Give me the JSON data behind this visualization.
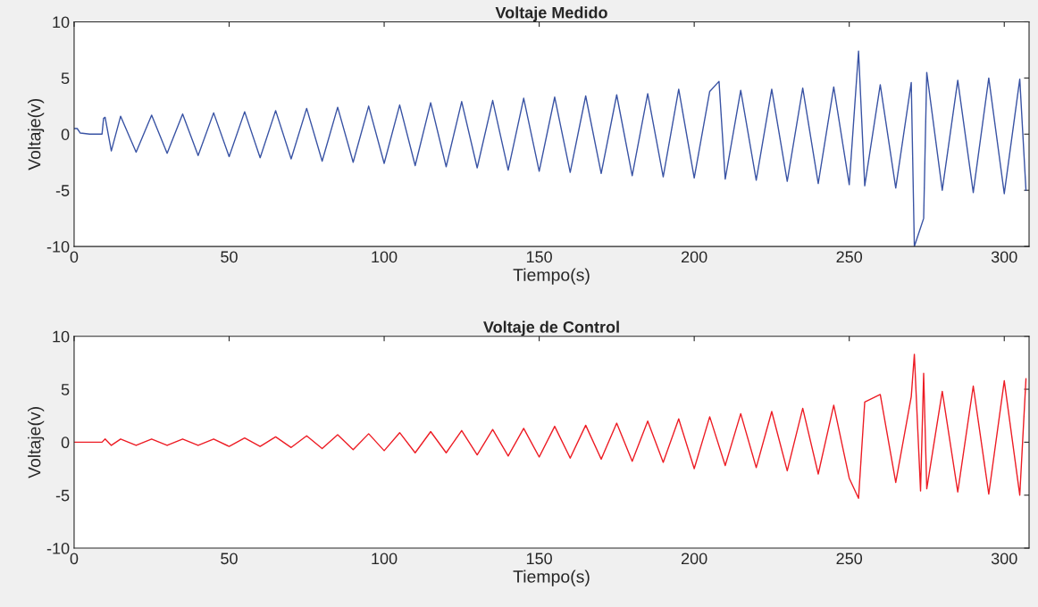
{
  "chart_data": [
    {
      "type": "line",
      "title": "Voltaje Medido",
      "xlabel": "Tiempo(s)",
      "ylabel": "Voltaje(v)",
      "xlim": [
        0,
        308
      ],
      "ylim": [
        -10,
        10
      ],
      "xticks": [
        0,
        50,
        100,
        150,
        200,
        250,
        300
      ],
      "yticks": [
        -10,
        -5,
        0,
        5,
        10
      ],
      "grid": false,
      "series": [
        {
          "color": "#3953a4",
          "x": [
            0,
            1,
            2,
            5,
            9,
            9.5,
            10,
            12,
            15,
            20,
            25,
            30,
            35,
            40,
            45,
            50,
            55,
            60,
            65,
            70,
            75,
            80,
            85,
            90,
            95,
            100,
            105,
            110,
            115,
            120,
            125,
            130,
            135,
            140,
            145,
            150,
            155,
            160,
            165,
            170,
            175,
            180,
            185,
            190,
            195,
            200,
            205,
            208,
            210,
            215,
            220,
            225,
            230,
            235,
            240,
            245,
            250,
            253,
            255,
            260,
            265,
            270,
            271,
            274,
            275,
            280,
            285,
            290,
            295,
            300,
            305,
            307
          ],
          "values": [
            0.5,
            0.5,
            0.1,
            0,
            0,
            1.4,
            1.5,
            -1.5,
            1.6,
            -1.6,
            1.7,
            -1.7,
            1.8,
            -1.9,
            1.9,
            -2.0,
            2.0,
            -2.1,
            2.1,
            -2.2,
            2.3,
            -2.4,
            2.4,
            -2.5,
            2.5,
            -2.6,
            2.6,
            -2.8,
            2.8,
            -2.9,
            2.9,
            -3.0,
            3.0,
            -3.2,
            3.2,
            -3.3,
            3.3,
            -3.4,
            3.4,
            -3.5,
            3.5,
            -3.7,
            3.6,
            -3.8,
            4.0,
            -3.9,
            3.8,
            4.7,
            -4.0,
            3.9,
            -4.1,
            4.0,
            -4.2,
            4.1,
            -4.4,
            4.2,
            -4.5,
            7.4,
            -4.6,
            4.4,
            -4.8,
            4.6,
            -10,
            -7.5,
            5.5,
            -5.0,
            4.8,
            -5.2,
            5.0,
            -5.3,
            4.9,
            -5.0
          ]
        }
      ]
    },
    {
      "type": "line",
      "title": "Voltaje de Control",
      "xlabel": "Tiempo(s)",
      "ylabel": "Voltaje(v)",
      "xlim": [
        0,
        308
      ],
      "ylim": [
        -10,
        10
      ],
      "xticks": [
        0,
        50,
        100,
        150,
        200,
        250,
        300
      ],
      "yticks": [
        -10,
        -5,
        0,
        5,
        10
      ],
      "grid": false,
      "series": [
        {
          "color": "#ed1c24",
          "x": [
            0,
            9,
            10,
            12,
            15,
            20,
            25,
            30,
            35,
            40,
            45,
            50,
            55,
            60,
            65,
            70,
            75,
            80,
            85,
            90,
            95,
            100,
            105,
            110,
            115,
            120,
            125,
            130,
            135,
            140,
            145,
            150,
            155,
            160,
            165,
            170,
            175,
            180,
            185,
            190,
            195,
            200,
            205,
            210,
            215,
            220,
            225,
            230,
            235,
            240,
            245,
            250,
            253,
            255,
            260,
            265,
            270,
            271,
            273,
            274,
            275,
            280,
            285,
            290,
            295,
            300,
            305,
            307
          ],
          "values": [
            0,
            0,
            0.3,
            -0.3,
            0.3,
            -0.3,
            0.3,
            -0.3,
            0.3,
            -0.3,
            0.3,
            -0.4,
            0.4,
            -0.4,
            0.5,
            -0.5,
            0.6,
            -0.6,
            0.7,
            -0.7,
            0.8,
            -0.8,
            0.9,
            -1.0,
            1.0,
            -1.0,
            1.1,
            -1.2,
            1.2,
            -1.3,
            1.3,
            -1.4,
            1.5,
            -1.5,
            1.6,
            -1.6,
            1.8,
            -1.8,
            2.0,
            -1.9,
            2.2,
            -2.5,
            2.4,
            -2.2,
            2.7,
            -2.4,
            2.9,
            -2.7,
            3.2,
            -3.0,
            3.5,
            -3.4,
            -5.3,
            3.8,
            4.5,
            -3.8,
            4.3,
            8.3,
            -4.6,
            6.5,
            -4.4,
            4.8,
            -4.7,
            5.3,
            -4.9,
            5.8,
            -5.0,
            6.0
          ]
        }
      ]
    }
  ]
}
